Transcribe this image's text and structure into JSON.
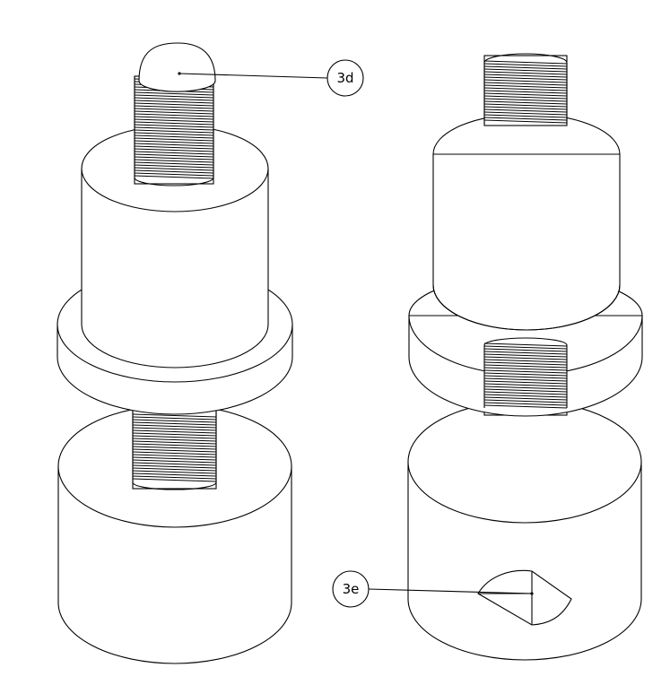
{
  "callouts": {
    "top_label": "3d",
    "bottom_label": "3e"
  },
  "colors": {
    "line": "#000000",
    "background": "#ffffff"
  }
}
